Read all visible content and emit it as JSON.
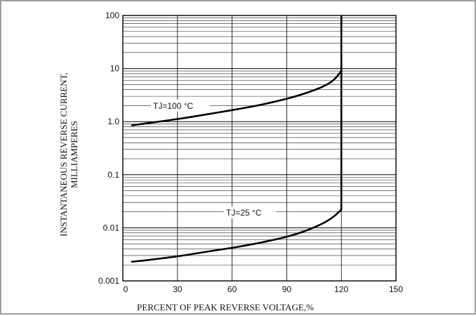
{
  "chart_data": {
    "type": "line",
    "xlabel": "PERCENT OF PEAK REVERSE VOLTAGE,%",
    "ylabel_lines": [
      "INSTANTANEOUS REVERSE CURRENT,",
      "MILLIAMPERES"
    ],
    "xlim": [
      0,
      150
    ],
    "ylim": [
      0.001,
      100
    ],
    "y_scale": "log",
    "x_ticks": [
      0,
      30,
      60,
      90,
      120,
      150
    ],
    "x_tick_labels": [
      "0",
      "30",
      "60",
      "90",
      "120",
      "150"
    ],
    "y_ticks": [
      0.001,
      0.01,
      0.1,
      1,
      10,
      100
    ],
    "y_tick_labels": [
      "0.001",
      "0.01",
      "0.1",
      "1.0",
      "10",
      "100"
    ],
    "grid": "log minor horizontal, major vertical",
    "series": [
      {
        "name": "TJ=100 °C",
        "points": [
          [
            5,
            0.85
          ],
          [
            15,
            0.95
          ],
          [
            30,
            1.12
          ],
          [
            45,
            1.35
          ],
          [
            60,
            1.65
          ],
          [
            75,
            2.05
          ],
          [
            90,
            2.7
          ],
          [
            100,
            3.4
          ],
          [
            110,
            4.6
          ],
          [
            116,
            6.2
          ],
          [
            120,
            9.0
          ]
        ]
      },
      {
        "name": "TJ=25 °C",
        "points": [
          [
            5,
            0.0023
          ],
          [
            15,
            0.0025
          ],
          [
            30,
            0.0029
          ],
          [
            45,
            0.0035
          ],
          [
            60,
            0.0042
          ],
          [
            75,
            0.0052
          ],
          [
            90,
            0.0068
          ],
          [
            100,
            0.0087
          ],
          [
            110,
            0.0122
          ],
          [
            116,
            0.0165
          ],
          [
            120,
            0.022
          ]
        ]
      }
    ],
    "breakdown": {
      "x": 120,
      "y_from": 0.022,
      "y_to": 100
    }
  }
}
